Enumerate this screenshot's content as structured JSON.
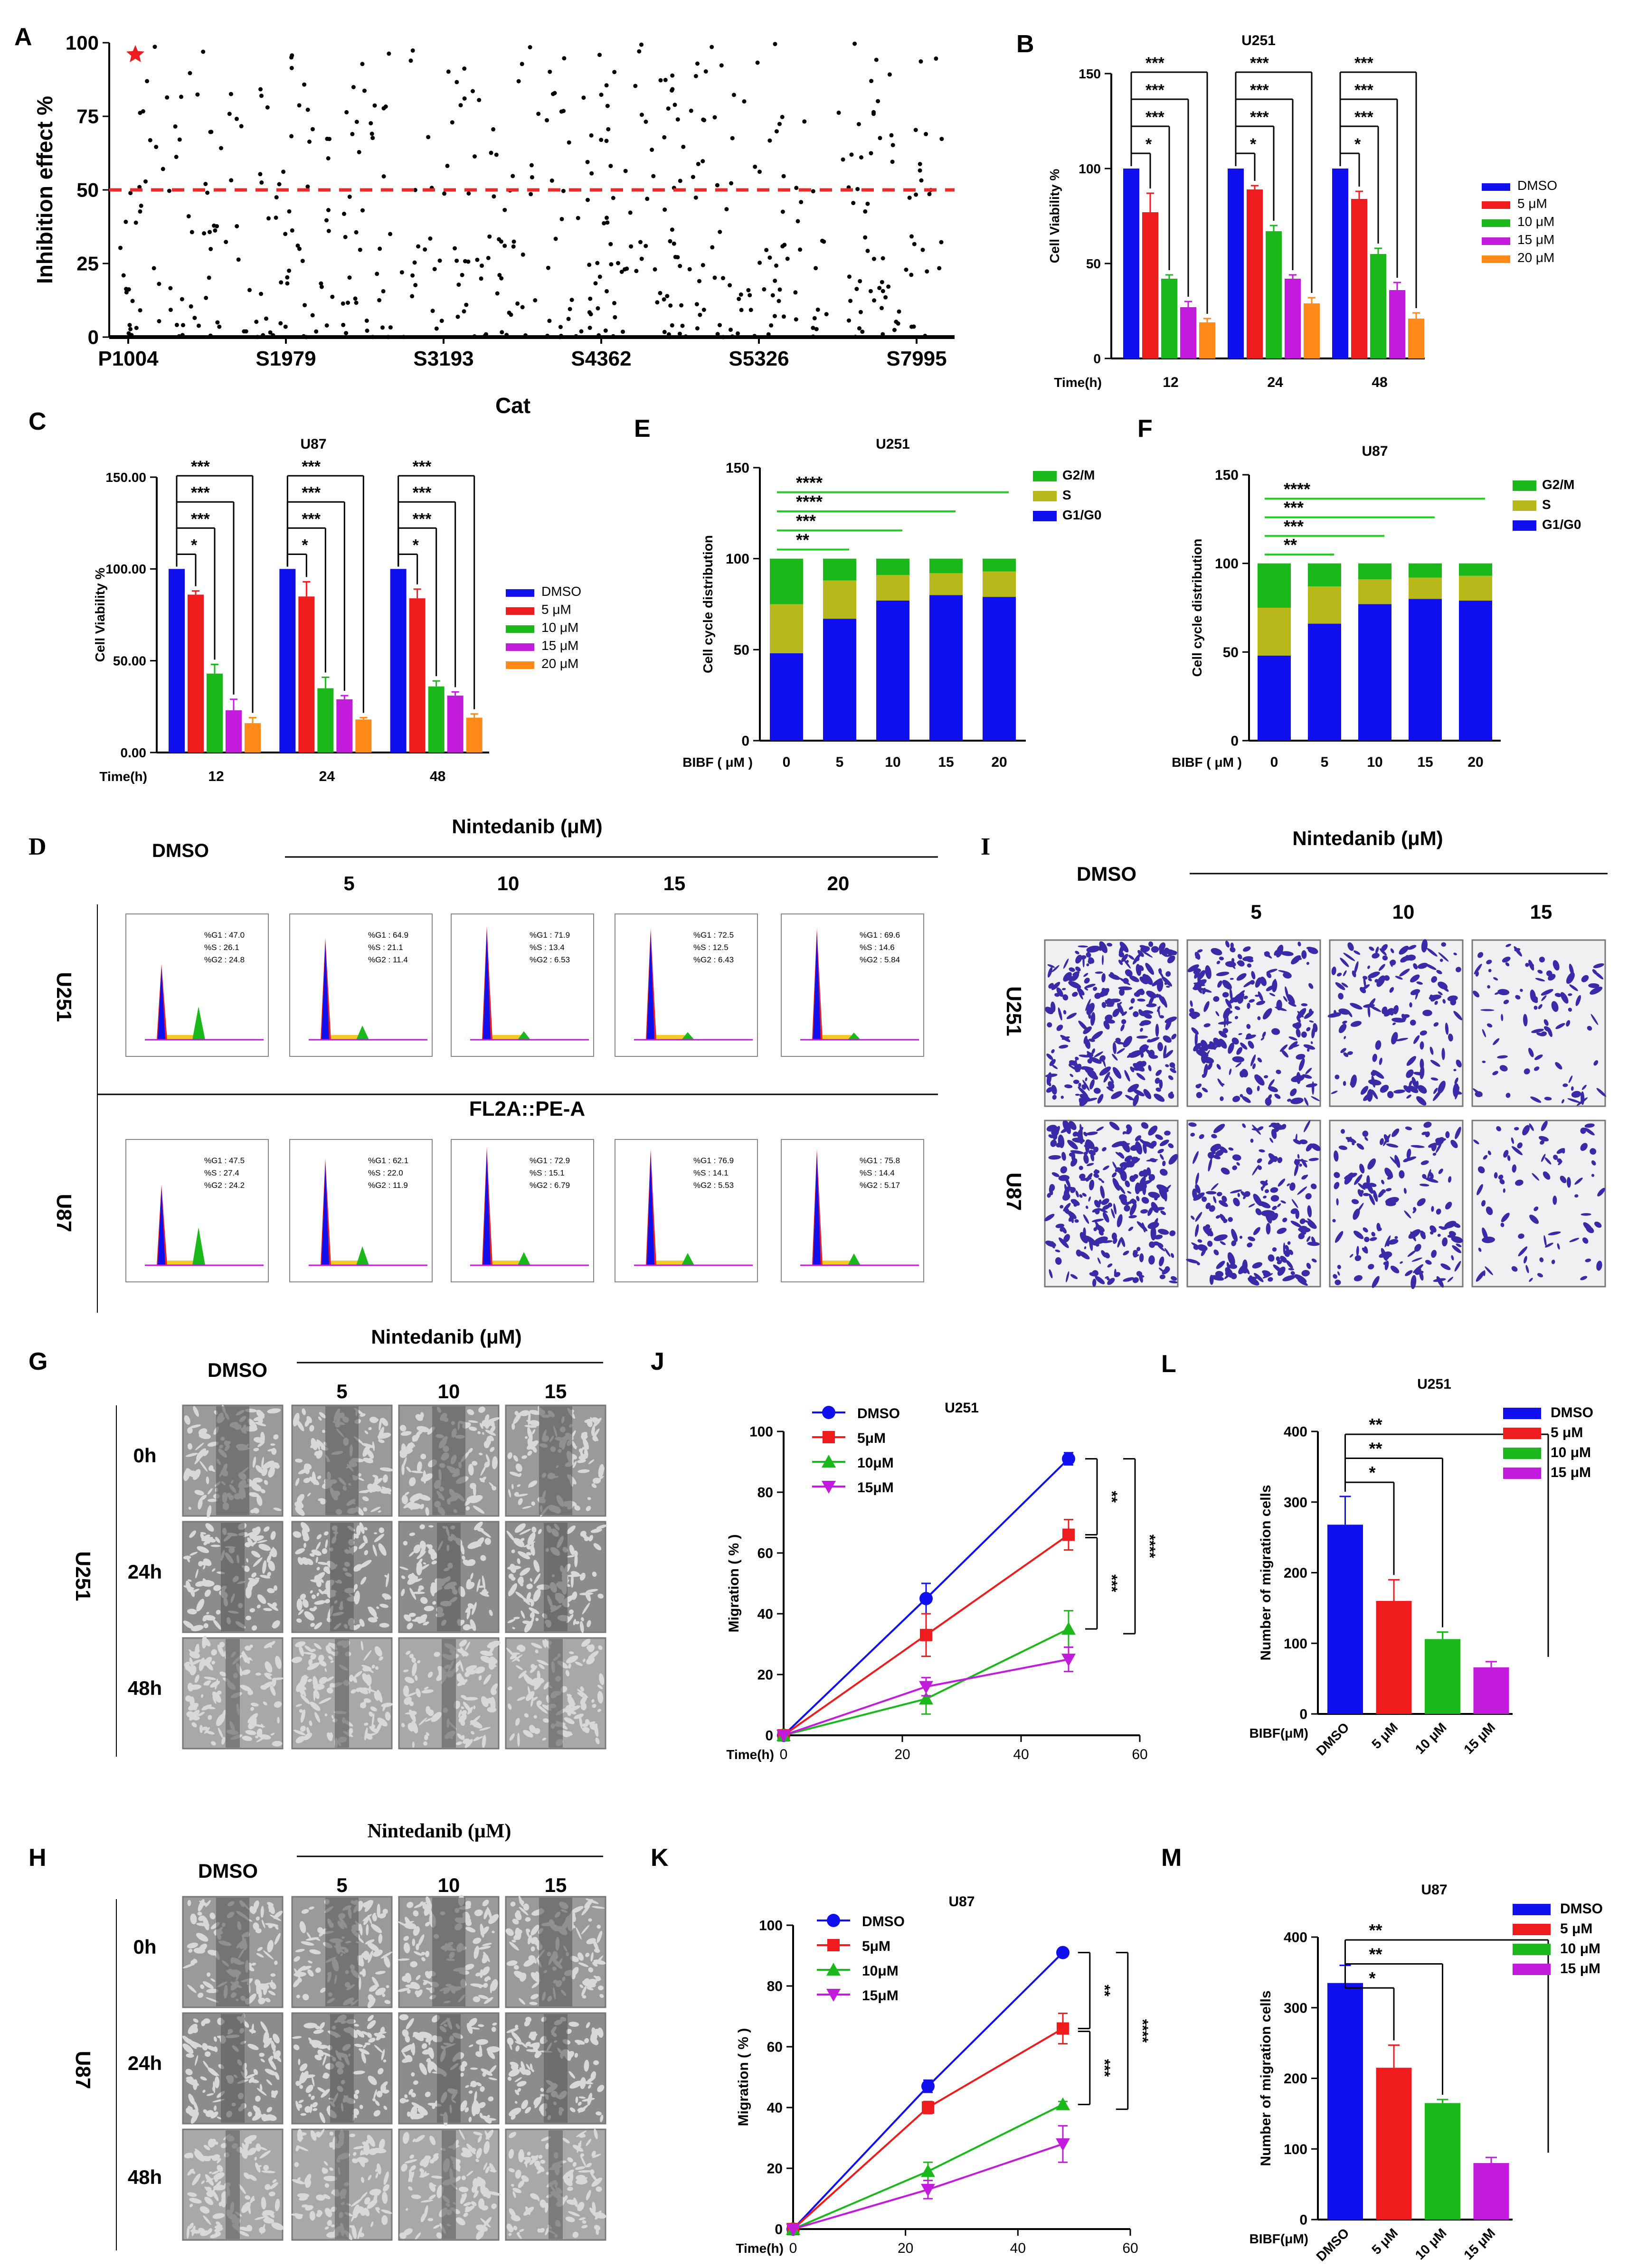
{
  "panel_letters": [
    "A",
    "B",
    "C",
    "D",
    "E",
    "F",
    "G",
    "H",
    "I",
    "J",
    "K",
    "L",
    "M"
  ],
  "colors": {
    "blue": "#1010ee",
    "red": "#ee1c1c",
    "green": "#1bb81b",
    "purple": "#c21bdb",
    "orange": "#ff8a1a",
    "olive": "#b8b81a",
    "dashed_red": "#ee2a2a",
    "sig_green": "#22cc22"
  },
  "chart_data": [
    {
      "id": "A",
      "type": "scatter",
      "title": "",
      "xlabel": "Cat",
      "ylabel": "Inhibition effect %",
      "ylim": [
        0,
        100
      ],
      "yticks": [
        "0",
        "25",
        "50",
        "75",
        "100"
      ],
      "xticks": [
        "P1004",
        "S1979",
        "S3193",
        "S4362",
        "S5326",
        "S7995"
      ],
      "threshold": 50,
      "highlight": {
        "x": 0,
        "y": 96
      },
      "n_points": 520
    },
    {
      "id": "B",
      "type": "bar",
      "title": "U251",
      "ylabel": "Cell Viability %",
      "xlabel": "Time(h)",
      "categories": [
        "12",
        "24",
        "48"
      ],
      "ylim": [
        0,
        150
      ],
      "yticks": [
        "0",
        "50",
        "100",
        "150"
      ],
      "series": [
        {
          "name": "DMSO",
          "values": [
            100,
            100,
            100
          ],
          "err": [
            0,
            0,
            0
          ]
        },
        {
          "name": "5  μM",
          "values": [
            77,
            89,
            84
          ],
          "err": [
            10,
            2,
            4
          ]
        },
        {
          "name": "10 μM",
          "values": [
            42,
            67,
            55
          ],
          "err": [
            2,
            3,
            3
          ]
        },
        {
          "name": "15 μM",
          "values": [
            27,
            42,
            36
          ],
          "err": [
            3,
            2,
            4
          ]
        },
        {
          "name": "20 μM",
          "values": [
            19,
            29,
            21
          ],
          "err": [
            2,
            3,
            3
          ]
        }
      ],
      "sig": [
        "*",
        "***",
        "***",
        "***"
      ]
    },
    {
      "id": "C",
      "type": "bar",
      "title": "U87",
      "ylabel": "Cell Viability %",
      "xlabel": "Time(h)",
      "categories": [
        "12",
        "24",
        "48"
      ],
      "ylim": [
        0,
        150
      ],
      "yticks": [
        "0.00",
        "50.00",
        "100.00",
        "150.00"
      ],
      "series": [
        {
          "name": "DMSO",
          "values": [
            100,
            100,
            100
          ],
          "err": [
            0,
            0,
            0
          ]
        },
        {
          "name": "5   μM",
          "values": [
            86,
            85,
            84
          ],
          "err": [
            2,
            8,
            5
          ]
        },
        {
          "name": "10  μM",
          "values": [
            43,
            35,
            36
          ],
          "err": [
            5,
            6,
            3
          ]
        },
        {
          "name": "15  μM",
          "values": [
            23,
            29,
            31
          ],
          "err": [
            6,
            2,
            2
          ]
        },
        {
          "name": "20  μM",
          "values": [
            16,
            18,
            19
          ],
          "err": [
            3,
            1,
            2
          ]
        }
      ],
      "sig": [
        "*",
        "***",
        "***",
        "***"
      ]
    },
    {
      "id": "E",
      "type": "bar",
      "stacked": true,
      "title": "U251",
      "ylabel": "Cell cycle distribution",
      "xlabel": "BIBF ( μM )",
      "categories": [
        "0",
        "5",
        "10",
        "15",
        "20"
      ],
      "ylim": [
        0,
        150
      ],
      "yticks": [
        "0",
        "50",
        "100",
        "150"
      ],
      "series": [
        {
          "name": "G1/G0",
          "values": [
            48,
            67,
            77,
            80,
            79
          ]
        },
        {
          "name": "S",
          "values": [
            27,
            21,
            14,
            12,
            14
          ]
        },
        {
          "name": "G2/M",
          "values": [
            25,
            12,
            9,
            8,
            7
          ]
        }
      ],
      "sig": [
        "**",
        "***",
        "****",
        "****"
      ]
    },
    {
      "id": "F",
      "type": "bar",
      "stacked": true,
      "title": "U87",
      "ylabel": "Cell cycle distribution",
      "xlabel": "BIBF ( μM )",
      "categories": [
        "0",
        "5",
        "10",
        "15",
        "20"
      ],
      "ylim": [
        0,
        150
      ],
      "yticks": [
        "0",
        "50",
        "100",
        "150"
      ],
      "series": [
        {
          "name": "G1/G0",
          "values": [
            48,
            66,
            77,
            80,
            79
          ]
        },
        {
          "name": "S",
          "values": [
            27,
            21,
            14,
            12,
            14
          ]
        },
        {
          "name": "G2/M",
          "values": [
            25,
            13,
            9,
            8,
            7
          ]
        }
      ],
      "sig": [
        "**",
        "***",
        "***",
        "****"
      ]
    },
    {
      "id": "J",
      "type": "line",
      "title": "U251",
      "ylabel": "Migration ( % )",
      "xlabel": "Time(h)",
      "x": [
        0,
        24,
        48
      ],
      "xlim": [
        0,
        60
      ],
      "xticks": [
        "0",
        "20",
        "40",
        "60"
      ],
      "ylim": [
        0,
        100
      ],
      "yticks": [
        "0",
        "20",
        "40",
        "60",
        "80",
        "100"
      ],
      "series": [
        {
          "name": "DMSO",
          "values": [
            0,
            45,
            91
          ],
          "err": [
            0,
            5,
            2
          ]
        },
        {
          "name": "5μM",
          "values": [
            0,
            33,
            66
          ],
          "err": [
            0,
            7,
            5
          ]
        },
        {
          "name": "10μM",
          "values": [
            0,
            12,
            35
          ],
          "err": [
            0,
            5,
            6
          ]
        },
        {
          "name": "15μM",
          "values": [
            0,
            16,
            25
          ],
          "err": [
            0,
            3,
            4
          ]
        }
      ],
      "sig": [
        "**",
        "***",
        "****"
      ]
    },
    {
      "id": "K",
      "type": "line",
      "title": "U87",
      "ylabel": "Migration ( % )",
      "xlabel": "Time(h)",
      "x": [
        0,
        24,
        48
      ],
      "xlim": [
        0,
        60
      ],
      "xticks": [
        "0",
        "20",
        "40",
        "60"
      ],
      "ylim": [
        0,
        100
      ],
      "yticks": [
        "0",
        "20",
        "40",
        "60",
        "80",
        "100"
      ],
      "series": [
        {
          "name": "DMSO",
          "values": [
            0,
            47,
            91
          ],
          "err": [
            0,
            2,
            1
          ]
        },
        {
          "name": "5μM",
          "values": [
            0,
            40,
            66
          ],
          "err": [
            0,
            2,
            5
          ]
        },
        {
          "name": "10μM",
          "values": [
            0,
            19,
            41
          ],
          "err": [
            0,
            3,
            1
          ]
        },
        {
          "name": "15μM",
          "values": [
            0,
            13,
            28
          ],
          "err": [
            0,
            3,
            6
          ]
        }
      ],
      "sig": [
        "**",
        "***",
        "****"
      ]
    },
    {
      "id": "L",
      "type": "bar",
      "title": "U251",
      "ylabel": "Number of migration cells",
      "xlabel": "BIBF(μM)",
      "categories": [
        "DMSO",
        "5  μM",
        "10 μM",
        "15 μM"
      ],
      "ylim": [
        0,
        400
      ],
      "yticks": [
        "0",
        "100",
        "200",
        "300",
        "400"
      ],
      "values": [
        268,
        160,
        106,
        66
      ],
      "err": [
        40,
        30,
        10,
        8
      ],
      "legend": [
        "DMSO",
        "5  μM",
        "10 μM",
        "15 μM"
      ],
      "sig": [
        "*",
        "**",
        "**"
      ]
    },
    {
      "id": "M",
      "type": "bar",
      "title": "U87",
      "ylabel": "Number of migration cells",
      "xlabel": "BIBF(μM)",
      "categories": [
        "DMSO",
        "5  μM",
        "10  μM",
        "15  μM"
      ],
      "ylim": [
        0,
        400
      ],
      "yticks": [
        "0",
        "100",
        "200",
        "300",
        "400"
      ],
      "values": [
        335,
        215,
        165,
        80
      ],
      "err": [
        25,
        32,
        5,
        8
      ],
      "legend": [
        "DMSO",
        "5  μM",
        "10  μM",
        "15  μM"
      ],
      "sig": [
        "*",
        "**",
        "**"
      ]
    }
  ],
  "panel_D": {
    "top_left": "DMSO",
    "drug": "Nintedanib  (μM)",
    "doses": [
      "5",
      "10",
      "15",
      "20"
    ],
    "rows": [
      "U251",
      "U87"
    ],
    "mid_label": "FL2A::PE-A",
    "u251": [
      [
        "%G1 : 47.0",
        "%S : 26.1",
        "%G2 : 24.8"
      ],
      [
        "%G1 : 64.9",
        "%S : 21.1",
        "%G2 : 11.4"
      ],
      [
        "%G1 : 71.9",
        "%S : 13.4",
        "%G2 : 6.53"
      ],
      [
        "%G1 : 72.5",
        "%S : 12.5",
        "%G2 : 6.43"
      ],
      [
        "%G1 : 69.6",
        "%S : 14.6",
        "%G2 : 5.84"
      ]
    ],
    "u87": [
      [
        "%G1 : 47.5",
        "%S : 27.4",
        "%G2 : 24.2"
      ],
      [
        "%G1 : 62.1",
        "%S : 22.0",
        "%G2 : 11.9"
      ],
      [
        "%G1 : 72.9",
        "%S : 15.1",
        "%G2 : 6.79"
      ],
      [
        "%G1 : 76.9",
        "%S : 14.1",
        "%G2 : 5.53"
      ],
      [
        "%G1 : 75.8",
        "%S : 14.4",
        "%G2 : 5.17"
      ]
    ]
  },
  "panel_I": {
    "top_left": "DMSO",
    "drug": "Nintedanib  (μM)",
    "doses": [
      "5",
      "10",
      "15"
    ],
    "rows": [
      "U251",
      "U87"
    ]
  },
  "panel_G": {
    "top_left": "DMSO",
    "drug": "Nintedanib  (μM)",
    "doses": [
      "5",
      "10",
      "15"
    ],
    "rows": [
      "0h",
      "24h",
      "48h"
    ],
    "cell": "U251"
  },
  "panel_H": {
    "top_left": "DMSO",
    "drug": "Nintedanib  (μM)",
    "doses": [
      "5",
      "10",
      "15"
    ],
    "rows": [
      "0h",
      "24h",
      "48h"
    ],
    "cell": "U87"
  }
}
